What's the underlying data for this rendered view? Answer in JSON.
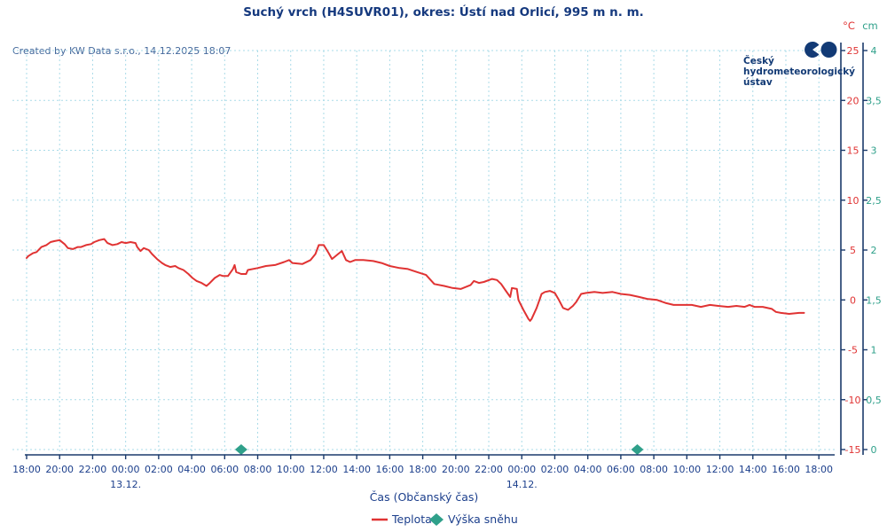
{
  "page": {
    "watermark": "Created by KW Data s.r.o., 14.12.2025 18:07",
    "logo": {
      "lines": [
        "Český",
        "hydrometeorologický",
        "ústav"
      ]
    }
  },
  "colors": {
    "title_text": "#15397e",
    "axis_line": "#1b3a6b",
    "tick_text": "#1c3f8c",
    "grid": "#aadbe8",
    "temperature": "#e03333",
    "snow": "#2fa08a",
    "watermark_text": "#44699c",
    "logo_navy": "#123a75"
  },
  "chart_data": {
    "type": "line",
    "title": "Suchý vrch (H4SUVR01), okres: Ústí nad Orlicí, 995 m n. m.",
    "xlabel": "Čas (Občanský čas)",
    "grid": true,
    "legend_position": "bottom-center",
    "x_axis": {
      "description": "48 hours from 12.12. 18:00 to 14.12. 18:00, tick every 2 hours",
      "span_hours": 48,
      "tick_step_hours": 2,
      "tick_labels": [
        "18:00",
        "20:00",
        "22:00",
        "00:00",
        "02:00",
        "04:00",
        "06:00",
        "08:00",
        "10:00",
        "12:00",
        "14:00",
        "16:00",
        "18:00",
        "20:00",
        "22:00",
        "00:00",
        "02:00",
        "04:00",
        "06:00",
        "08:00",
        "10:00",
        "12:00",
        "14:00",
        "16:00",
        "18:00"
      ],
      "date_labels": [
        {
          "hour": 6,
          "text": "13.12."
        },
        {
          "hour": 30,
          "text": "14.12."
        }
      ]
    },
    "y_axis_temp": {
      "unit": "°C",
      "min": -15,
      "max": 25,
      "step": 5,
      "tick_labels": [
        "25",
        "20",
        "15",
        "10",
        "5",
        "0",
        "-5",
        "-10",
        "-15"
      ],
      "color": "#e03333"
    },
    "y_axis_snow": {
      "unit": "cm",
      "min": 0,
      "max": 4,
      "step": 0.5,
      "tick_labels": [
        "4",
        "3,5",
        "3",
        "2,5",
        "2",
        "1,5",
        "1",
        "0,5",
        "0"
      ],
      "color": "#2fa08a"
    },
    "series": [
      {
        "name": "Teplota",
        "type": "line",
        "axis": "temp",
        "color": "#e03333",
        "points": [
          [
            0,
            4.2
          ],
          [
            0.1,
            4.4
          ],
          [
            0.4,
            4.7
          ],
          [
            0.6,
            4.8
          ],
          [
            0.9,
            5.3
          ],
          [
            1.2,
            5.5
          ],
          [
            1.45,
            5.8
          ],
          [
            1.7,
            5.9
          ],
          [
            2,
            6
          ],
          [
            2.3,
            5.6
          ],
          [
            2.5,
            5.2
          ],
          [
            2.8,
            5.1
          ],
          [
            3.1,
            5.3
          ],
          [
            3.3,
            5.3
          ],
          [
            3.6,
            5.5
          ],
          [
            3.9,
            5.6
          ],
          [
            4.1,
            5.8
          ],
          [
            4.4,
            6
          ],
          [
            4.7,
            6.1
          ],
          [
            4.9,
            5.7
          ],
          [
            5.2,
            5.5
          ],
          [
            5.5,
            5.6
          ],
          [
            5.75,
            5.8
          ],
          [
            6,
            5.7
          ],
          [
            6.3,
            5.8
          ],
          [
            6.6,
            5.7
          ],
          [
            6.7,
            5.3
          ],
          [
            6.9,
            4.9
          ],
          [
            7.1,
            5.2
          ],
          [
            7.4,
            5
          ],
          [
            7.6,
            4.6
          ],
          [
            7.9,
            4.1
          ],
          [
            8.2,
            3.7
          ],
          [
            8.4,
            3.5
          ],
          [
            8.7,
            3.3
          ],
          [
            9,
            3.4
          ],
          [
            9.2,
            3.2
          ],
          [
            9.5,
            3
          ],
          [
            9.8,
            2.6
          ],
          [
            10.05,
            2.2
          ],
          [
            10.3,
            1.9
          ],
          [
            10.6,
            1.7
          ],
          [
            10.9,
            1.4
          ],
          [
            11.1,
            1.7
          ],
          [
            11.4,
            2.2
          ],
          [
            11.7,
            2.5
          ],
          [
            11.9,
            2.4
          ],
          [
            12.2,
            2.4
          ],
          [
            12.5,
            3.1
          ],
          [
            12.6,
            3.5
          ],
          [
            12.7,
            2.8
          ],
          [
            13,
            2.6
          ],
          [
            13.3,
            2.6
          ],
          [
            13.4,
            3
          ],
          [
            14,
            3.2
          ],
          [
            14.5,
            3.4
          ],
          [
            15.05,
            3.5
          ],
          [
            15.6,
            3.8
          ],
          [
            15.9,
            4
          ],
          [
            16.1,
            3.7
          ],
          [
            16.7,
            3.6
          ],
          [
            17.2,
            4
          ],
          [
            17.5,
            4.6
          ],
          [
            17.7,
            5.5
          ],
          [
            18,
            5.5
          ],
          [
            18.3,
            4.7
          ],
          [
            18.5,
            4.1
          ],
          [
            18.8,
            4.5
          ],
          [
            19.1,
            4.9
          ],
          [
            19.35,
            4
          ],
          [
            19.6,
            3.8
          ],
          [
            19.9,
            4
          ],
          [
            20.4,
            4
          ],
          [
            21,
            3.9
          ],
          [
            21.5,
            3.7
          ],
          [
            22,
            3.4
          ],
          [
            22.6,
            3.2
          ],
          [
            23.1,
            3.1
          ],
          [
            23.65,
            2.8
          ],
          [
            24.2,
            2.5
          ],
          [
            24.7,
            1.6
          ],
          [
            25.3,
            1.4
          ],
          [
            25.8,
            1.2
          ],
          [
            26.3,
            1.1
          ],
          [
            26.9,
            1.5
          ],
          [
            27.1,
            1.9
          ],
          [
            27.4,
            1.7
          ],
          [
            27.7,
            1.8
          ],
          [
            28.2,
            2.1
          ],
          [
            28.5,
            2
          ],
          [
            28.75,
            1.6
          ],
          [
            29,
            1
          ],
          [
            29.3,
            0.3
          ],
          [
            29.4,
            1.2
          ],
          [
            29.7,
            1.1
          ],
          [
            29.8,
            0
          ],
          [
            30.1,
            -1
          ],
          [
            30.4,
            -1.9
          ],
          [
            30.5,
            -2.1
          ],
          [
            30.6,
            -1.9
          ],
          [
            30.9,
            -0.8
          ],
          [
            31.2,
            0.6
          ],
          [
            31.4,
            0.8
          ],
          [
            31.7,
            0.9
          ],
          [
            32,
            0.7
          ],
          [
            32.25,
            0
          ],
          [
            32.5,
            -0.8
          ],
          [
            32.8,
            -1
          ],
          [
            33.1,
            -0.6
          ],
          [
            33.3,
            -0.2
          ],
          [
            33.6,
            0.6
          ],
          [
            33.9,
            0.7
          ],
          [
            34.4,
            0.8
          ],
          [
            34.9,
            0.7
          ],
          [
            35.5,
            0.8
          ],
          [
            36,
            0.6
          ],
          [
            36.55,
            0.5
          ],
          [
            37.1,
            0.3
          ],
          [
            37.6,
            0.1
          ],
          [
            38.2,
            0
          ],
          [
            38.7,
            -0.3
          ],
          [
            39.2,
            -0.5
          ],
          [
            39.8,
            -0.5
          ],
          [
            40.3,
            -0.5
          ],
          [
            40.85,
            -0.7
          ],
          [
            41.4,
            -0.5
          ],
          [
            41.9,
            -0.6
          ],
          [
            42.5,
            -0.7
          ],
          [
            43,
            -0.6
          ],
          [
            43.5,
            -0.7
          ],
          [
            43.8,
            -0.5
          ],
          [
            44.1,
            -0.7
          ],
          [
            44.6,
            -0.7
          ],
          [
            45.15,
            -0.9
          ],
          [
            45.4,
            -1.2
          ],
          [
            45.7,
            -1.3
          ],
          [
            46.2,
            -1.4
          ],
          [
            46.8,
            -1.3
          ],
          [
            47.1,
            -1.3
          ]
        ]
      },
      {
        "name": "Výška sněhu",
        "type": "diamond",
        "axis": "snow",
        "color": "#2fa08a",
        "points": [
          [
            13,
            0
          ],
          [
            37,
            0
          ]
        ]
      }
    ],
    "legend": [
      {
        "label": "Teplota",
        "marker": "line",
        "color": "#e03333"
      },
      {
        "label": "Výška sněhu",
        "marker": "diamond",
        "color": "#2fa08a"
      }
    ]
  }
}
